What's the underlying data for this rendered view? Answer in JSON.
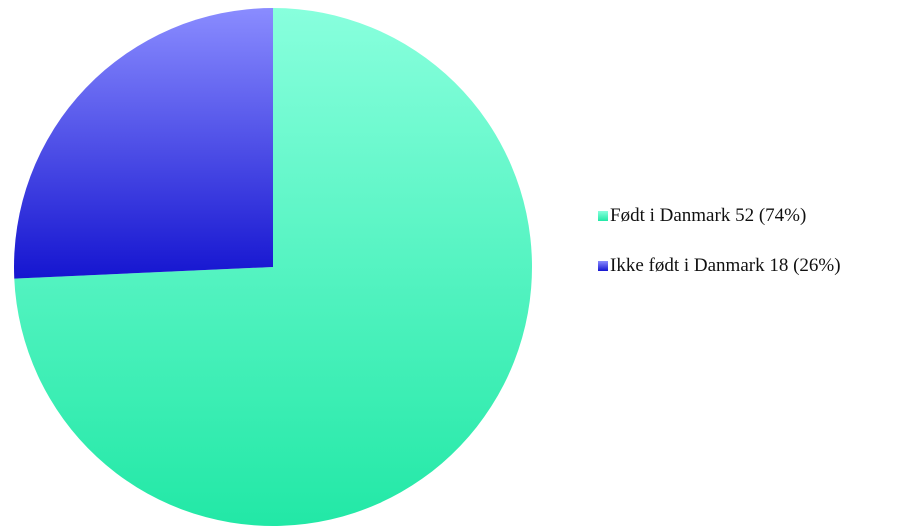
{
  "chart_data": {
    "type": "pie",
    "title": "",
    "slices": [
      {
        "label": "Født i Danmark 52 (74%)",
        "name": "Født i Danmark",
        "value": 52,
        "percent": 74,
        "color_light": "#88ffdd",
        "color_dark": "#22e8a6",
        "color": "#55f2c0"
      },
      {
        "label": "Ikke født i Danmark 18 (26%)",
        "name": "Ikke født i Danmark",
        "value": 18,
        "percent": 26,
        "color_light": "#8a8cff",
        "color_dark": "#1515d0",
        "color": "#4a4ae8"
      }
    ],
    "legend_position": "right"
  }
}
